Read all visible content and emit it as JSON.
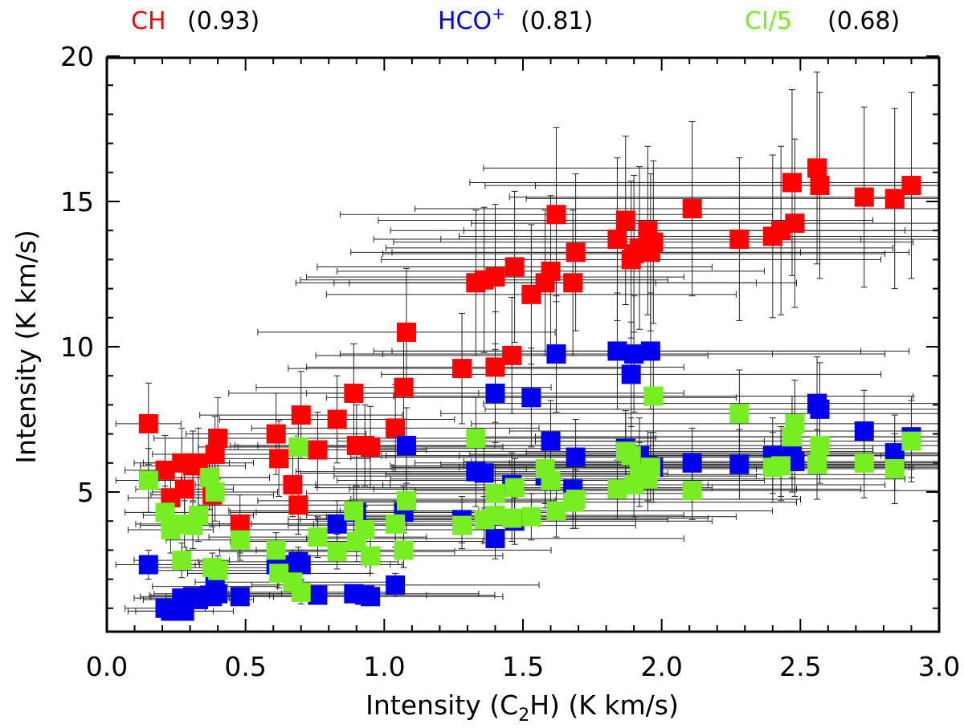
{
  "chart_data": {
    "type": "scatter",
    "xlabel": "Intensity (C₂H) (K km/s)",
    "ylabel": "Intensity (K km/s)",
    "xlim": [
      0.0,
      3.0
    ],
    "ylim": [
      0.6,
      20.0
    ],
    "x_ticks": [
      0.0,
      0.5,
      1.0,
      1.5,
      2.0,
      2.5,
      3.0
    ],
    "x_tick_labels": [
      "0.0",
      "0.5",
      "1.0",
      "1.5",
      "2.0",
      "2.5",
      "3.0"
    ],
    "y_ticks": [
      5,
      10,
      15,
      20
    ],
    "y_tick_labels": [
      "5",
      "10",
      "15",
      "20"
    ],
    "x": [
      0.15,
      0.21,
      0.23,
      0.27,
      0.28,
      0.31,
      0.33,
      0.37,
      0.38,
      0.39,
      0.4,
      0.48,
      0.61,
      0.62,
      0.67,
      0.69,
      0.7,
      0.76,
      0.83,
      0.89,
      0.9,
      0.93,
      0.95,
      1.04,
      1.07,
      1.08,
      1.28,
      1.33,
      1.36,
      1.4,
      1.4,
      1.46,
      1.47,
      1.53,
      1.58,
      1.6,
      1.62,
      1.68,
      1.69,
      1.84,
      1.87,
      1.89,
      1.9,
      1.92,
      1.95,
      1.96,
      1.97,
      2.11,
      2.28,
      2.4,
      2.43,
      2.47,
      2.48,
      2.56,
      2.57,
      2.73,
      2.84,
      2.9
    ],
    "series": [
      {
        "name": "CH",
        "color": "#ff0000",
        "values": [
          7.35,
          5.75,
          4.8,
          6.0,
          5.1,
          5.9,
          6.0,
          5.5,
          4.9,
          6.3,
          6.85,
          3.9,
          7.0,
          6.15,
          5.25,
          4.55,
          7.65,
          6.45,
          7.5,
          8.4,
          6.6,
          6.6,
          6.55,
          7.2,
          8.6,
          10.5,
          9.25,
          12.2,
          12.3,
          9.3,
          12.4,
          9.7,
          12.75,
          11.8,
          12.2,
          12.6,
          14.55,
          12.2,
          13.25,
          13.7,
          14.35,
          13.0,
          13.2,
          13.4,
          14.0,
          13.25,
          13.6,
          14.75,
          13.7,
          13.8,
          14.0,
          15.65,
          14.25,
          16.15,
          15.55,
          15.15,
          15.1,
          15.55
        ],
        "yerr": [
          1.4,
          1.2,
          1.1,
          1.2,
          1.1,
          1.2,
          1.2,
          1.1,
          1.1,
          1.3,
          1.4,
          1.0,
          1.4,
          1.3,
          1.1,
          1.0,
          1.5,
          1.3,
          1.5,
          1.7,
          1.4,
          1.4,
          1.4,
          1.5,
          1.8,
          2.2,
          1.9,
          2.5,
          2.5,
          1.9,
          2.5,
          2.0,
          2.6,
          2.4,
          2.5,
          2.6,
          3.0,
          2.5,
          2.7,
          2.8,
          2.9,
          2.7,
          2.7,
          2.8,
          2.9,
          2.7,
          2.8,
          3.0,
          2.8,
          2.8,
          2.9,
          3.2,
          2.9,
          3.3,
          3.2,
          3.1,
          3.1,
          3.2
        ]
      },
      {
        "name": "HCO+",
        "color": "#0000ee",
        "values": [
          2.5,
          1.0,
          0.9,
          1.35,
          0.9,
          1.4,
          1.3,
          1.45,
          1.4,
          1.75,
          1.5,
          1.4,
          2.5,
          2.5,
          2.5,
          2.6,
          2.5,
          1.45,
          3.9,
          1.5,
          4.3,
          1.45,
          1.4,
          1.8,
          4.3,
          6.6,
          4.05,
          5.7,
          5.65,
          8.4,
          3.4,
          5.25,
          4.0,
          8.25,
          5.55,
          6.75,
          9.75,
          5.1,
          6.2,
          9.85,
          6.5,
          9.05,
          9.75,
          6.25,
          5.9,
          9.85,
          5.85,
          6.0,
          5.95,
          6.25,
          6.05,
          6.3,
          6.05,
          8.05,
          7.85,
          7.1,
          6.35,
          6.9
        ],
        "yerr": [
          0.5,
          0.3,
          0.3,
          0.3,
          0.3,
          0.3,
          0.3,
          0.3,
          0.3,
          0.4,
          0.3,
          0.3,
          0.5,
          0.5,
          0.5,
          0.5,
          0.5,
          0.3,
          0.8,
          0.3,
          0.9,
          0.3,
          0.3,
          0.4,
          0.9,
          1.3,
          0.8,
          1.2,
          1.2,
          1.7,
          0.7,
          1.1,
          0.8,
          1.7,
          1.1,
          1.4,
          2.0,
          1.0,
          1.3,
          2.0,
          1.3,
          1.8,
          2.0,
          1.3,
          1.2,
          2.0,
          1.2,
          1.2,
          1.2,
          1.3,
          1.2,
          1.3,
          1.2,
          1.6,
          1.6,
          1.4,
          1.3,
          1.4
        ]
      },
      {
        "name": "CI/5",
        "color": "#77ee22",
        "values": [
          5.4,
          4.3,
          3.7,
          2.65,
          3.9,
          3.85,
          4.2,
          5.5,
          2.4,
          5.0,
          2.3,
          3.35,
          3.0,
          2.2,
          1.9,
          6.55,
          1.55,
          3.45,
          2.95,
          4.35,
          3.3,
          3.7,
          2.8,
          3.9,
          3.0,
          4.7,
          3.85,
          6.85,
          4.05,
          4.95,
          4.2,
          4.1,
          5.15,
          4.15,
          5.8,
          5.4,
          4.35,
          4.65,
          4.75,
          5.1,
          6.4,
          6.25,
          5.25,
          5.6,
          5.45,
          5.85,
          8.3,
          5.05,
          7.7,
          5.85,
          5.9,
          6.9,
          7.35,
          5.95,
          6.6,
          6.0,
          5.8,
          6.75
        ],
        "yerr": [
          1.1,
          0.9,
          0.8,
          0.6,
          0.8,
          0.8,
          0.9,
          1.1,
          0.5,
          1.0,
          0.5,
          0.7,
          0.6,
          0.5,
          0.4,
          1.3,
          0.4,
          0.7,
          0.6,
          0.9,
          0.7,
          0.8,
          0.6,
          0.8,
          0.6,
          1.0,
          0.8,
          1.4,
          0.8,
          1.0,
          0.9,
          0.8,
          1.0,
          0.8,
          1.2,
          1.1,
          0.9,
          0.9,
          1.0,
          1.0,
          1.3,
          1.3,
          1.1,
          1.1,
          1.1,
          1.2,
          1.7,
          1.0,
          1.5,
          1.2,
          1.2,
          1.4,
          1.5,
          1.2,
          1.3,
          1.2,
          1.2,
          1.4
        ]
      }
    ],
    "legend": [
      {
        "name": "CH",
        "value": "(0.93)",
        "color": "#ff0000"
      },
      {
        "name": "HCO",
        "superscript": "+",
        "value": "(0.81)",
        "color": "#0000ee"
      },
      {
        "name": "CI/5",
        "value": "(0.68)",
        "color": "#77ee22"
      }
    ],
    "legend_position": "top",
    "grid": false
  }
}
